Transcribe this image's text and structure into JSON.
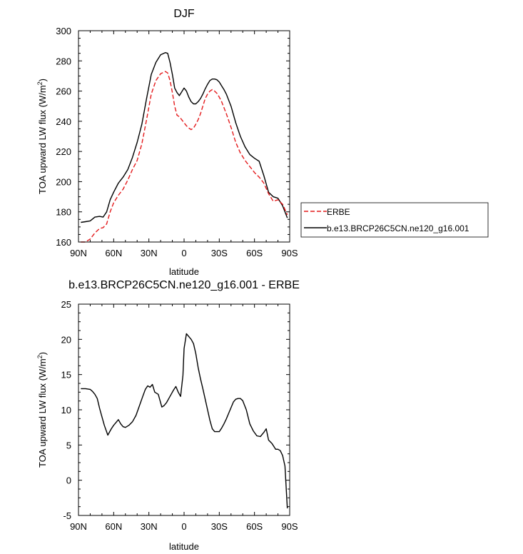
{
  "chart_data": [
    {
      "type": "line",
      "title": "DJF",
      "xlabel": "latitude",
      "ylabel_main": "TOA upward LW flux (W/m",
      "ylabel_sup": "2",
      "ylabel_close": ")",
      "xlim": [
        90,
        -90
      ],
      "ylim": [
        160,
        300
      ],
      "x_tick_values": [
        90,
        60,
        30,
        0,
        -30,
        -60,
        -90
      ],
      "x_tick_labels": [
        "90N",
        "60N",
        "30N",
        "0",
        "30S",
        "60S",
        "90S"
      ],
      "y_tick_values": [
        160,
        180,
        200,
        220,
        240,
        260,
        280,
        300
      ],
      "y_tick_labels": [
        "160",
        "180",
        "200",
        "220",
        "240",
        "260",
        "280",
        "300"
      ],
      "legend": {
        "position": "right",
        "entries": [
          {
            "label": "ERBE",
            "color": "#e41a1c",
            "dash": "dashed"
          },
          {
            "label": "b.e13.BRCP26C5CN.ne120_g16.001",
            "color": "#000000",
            "dash": "solid"
          }
        ]
      },
      "series": [
        {
          "name": "b.e13.BRCP26C5CN.ne120_g16.001",
          "color": "#000000",
          "dash": "solid",
          "x": [
            88,
            84,
            80,
            76,
            72,
            69,
            66,
            63,
            60,
            56,
            52,
            48,
            44,
            40,
            36,
            32,
            28,
            24,
            20,
            16,
            14,
            12,
            10,
            8,
            6,
            4,
            2,
            0,
            -2,
            -4,
            -6,
            -8,
            -10,
            -12,
            -14,
            -16,
            -18,
            -20,
            -22,
            -24,
            -26,
            -28,
            -30,
            -32,
            -34,
            -36,
            -40,
            -44,
            -48,
            -52,
            -56,
            -60,
            -64,
            -68,
            -72,
            -76,
            -80,
            -84,
            -88
          ],
          "y": [
            173,
            173.5,
            174,
            176.5,
            177,
            176.5,
            180,
            188,
            193,
            199,
            203,
            208,
            216,
            226,
            238,
            255,
            271,
            279,
            284,
            285.5,
            285,
            279,
            271,
            262,
            259,
            257,
            259.5,
            262,
            260,
            256,
            253,
            251.5,
            251.5,
            253,
            255,
            258,
            261.5,
            264.5,
            267,
            268,
            268,
            267.5,
            266,
            263.5,
            261,
            258,
            250,
            239,
            230,
            223,
            218,
            215.5,
            213.5,
            204,
            193,
            190,
            189,
            184,
            176
          ]
        },
        {
          "name": "ERBE",
          "color": "#e41a1c",
          "dash": "dashed",
          "x": [
            88,
            84,
            80,
            76,
            72,
            69,
            66,
            63,
            60,
            56,
            52,
            48,
            44,
            40,
            36,
            32,
            28,
            24,
            20,
            16,
            14,
            12,
            10,
            8,
            6,
            4,
            2,
            0,
            -2,
            -4,
            -6,
            -8,
            -10,
            -12,
            -14,
            -16,
            -18,
            -20,
            -22,
            -24,
            -26,
            -28,
            -30,
            -32,
            -34,
            -36,
            -40,
            -44,
            -48,
            -52,
            -56,
            -60,
            -64,
            -68,
            -72,
            -76,
            -80,
            -84,
            -88
          ],
          "y": [
            160,
            160,
            162,
            166,
            169,
            169.5,
            172,
            180,
            186,
            191,
            195,
            201,
            208,
            214,
            225,
            241,
            258,
            267,
            271.5,
            273,
            272,
            267,
            259,
            250,
            244,
            243,
            241,
            239,
            237,
            235.5,
            234.5,
            235.5,
            238,
            241,
            245,
            250,
            255,
            258,
            260,
            261,
            260,
            258.5,
            256,
            253,
            249,
            245,
            236,
            226,
            219,
            214,
            210,
            206,
            203,
            199,
            192,
            187,
            188,
            185,
            178
          ]
        }
      ]
    },
    {
      "type": "line",
      "title": "b.e13.BRCP26C5CN.ne120_g16.001 - ERBE",
      "xlabel": "latitude",
      "ylabel_main": "TOA upward LW flux (W/m",
      "ylabel_sup": "2",
      "ylabel_close": ")",
      "xlim": [
        90,
        -90
      ],
      "ylim": [
        -5,
        25
      ],
      "x_tick_values": [
        90,
        60,
        30,
        0,
        -30,
        -60,
        -90
      ],
      "x_tick_labels": [
        "90N",
        "60N",
        "30N",
        "0",
        "30S",
        "60S",
        "90S"
      ],
      "y_tick_values": [
        -5,
        0,
        5,
        10,
        15,
        20,
        25
      ],
      "y_tick_labels": [
        "-5",
        "0",
        "5",
        "10",
        "15",
        "20",
        "25"
      ],
      "series": [
        {
          "name": "b.e13.BRCP26C5CN.ne120_g16.001 - ERBE",
          "color": "#000000",
          "dash": "solid",
          "x": [
            88,
            84,
            80,
            78,
            76,
            74,
            72,
            70,
            68,
            65,
            62,
            60,
            58,
            56,
            54,
            52,
            50,
            47,
            44,
            41,
            38,
            35,
            33,
            31,
            29,
            27,
            25,
            22,
            19,
            17,
            15,
            13,
            11,
            9,
            7,
            5,
            3,
            1,
            0,
            -2,
            -4,
            -6,
            -8,
            -10,
            -12,
            -14,
            -16,
            -18,
            -20,
            -22,
            -24,
            -26,
            -28,
            -30,
            -32,
            -34,
            -36,
            -38,
            -40,
            -42,
            -44,
            -46,
            -48,
            -50,
            -53,
            -56,
            -59,
            -62,
            -65,
            -68,
            -70,
            -72,
            -75,
            -78,
            -80,
            -82,
            -84,
            -86,
            -88
          ],
          "y": [
            13,
            13,
            12.9,
            12.6,
            12.2,
            11.6,
            10.2,
            9,
            7.8,
            6.4,
            7.3,
            7.8,
            8.2,
            8.6,
            8,
            7.6,
            7.5,
            7.8,
            8.3,
            9.2,
            10.6,
            12,
            12.9,
            13.4,
            13.2,
            13.6,
            12.5,
            12.2,
            10.4,
            10.6,
            11,
            11.6,
            12.2,
            12.8,
            13.3,
            12.5,
            11.9,
            14.9,
            18.7,
            20.8,
            20.4,
            20,
            19.4,
            18,
            16,
            14.4,
            13,
            11.5,
            10,
            8.5,
            7.3,
            6.9,
            6.9,
            6.9,
            7.4,
            8,
            8.7,
            9.5,
            10.3,
            11.1,
            11.5,
            11.6,
            11.6,
            11.3,
            10,
            8,
            7,
            6.3,
            6.2,
            6.8,
            7.3,
            5.7,
            5.2,
            4.4,
            4.4,
            4.2,
            3.5,
            2,
            -4
          ]
        }
      ]
    }
  ]
}
